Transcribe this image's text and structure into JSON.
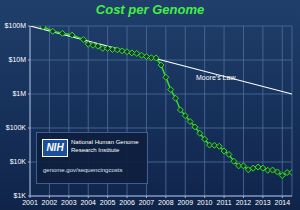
{
  "chart_data": {
    "type": "line",
    "title": "Cost per Genome",
    "log": "y",
    "grid": true,
    "xlim": [
      2001,
      2014.5
    ],
    "xticks": [
      2001,
      2002,
      2003,
      2004,
      2005,
      2006,
      2007,
      2008,
      2009,
      2010,
      2011,
      2012,
      2013,
      2014
    ],
    "ylim": [
      1000,
      100000000
    ],
    "yticks": [
      {
        "value": 1000,
        "label": "$1K"
      },
      {
        "value": 10000,
        "label": "$10K"
      },
      {
        "value": 100000,
        "label": "$100K"
      },
      {
        "value": 1000000,
        "label": "$1M"
      },
      {
        "value": 10000000,
        "label": "$10M"
      },
      {
        "value": 100000000,
        "label": "$100M"
      }
    ],
    "series": [
      {
        "name": "Moore's Law",
        "color": "#ffffff",
        "x": [
          2001,
          2014.5
        ],
        "values": [
          100000000,
          1000000
        ]
      },
      {
        "color": "#33dd33",
        "marker": "diamond",
        "x": [
          2001.67,
          2002.17,
          2002.67,
          2003.17,
          2003.75,
          2004.0,
          2004.25,
          2004.5,
          2004.75,
          2005.0,
          2005.25,
          2005.5,
          2005.75,
          2006.0,
          2006.25,
          2006.5,
          2006.75,
          2007.0,
          2007.25,
          2007.5,
          2007.75,
          2008.0,
          2008.25,
          2008.5,
          2008.75,
          2009.0,
          2009.25,
          2009.5,
          2009.75,
          2010.0,
          2010.25,
          2010.5,
          2010.75,
          2011.0,
          2011.25,
          2011.5,
          2011.75,
          2012.0,
          2012.25,
          2012.5,
          2012.75,
          2013.0,
          2013.25,
          2013.5,
          2013.75,
          2014.0,
          2014.25,
          2014.5
        ],
        "values": [
          95000000,
          70000000,
          61000000,
          54000000,
          40000000,
          29000000,
          27000000,
          25500000,
          22000000,
          22000000,
          20400000,
          19900000,
          18500000,
          17500000,
          16200000,
          15600000,
          13800000,
          12600000,
          11700000,
          11500000,
          7100000,
          3100000,
          1350000,
          750000,
          340000,
          230000,
          155000,
          108000,
          70000,
          47000,
          31500,
          31000,
          29000,
          21000,
          16700,
          10500,
          7700,
          7700,
          5900,
          6600,
          7100,
          6600,
          5700,
          5800,
          5100,
          4000,
          4900,
          4900
        ]
      }
    ],
    "annotations": [
      "NIH",
      "National Human Genome Research Institute",
      "genome.gov/sequencingcosts"
    ]
  }
}
